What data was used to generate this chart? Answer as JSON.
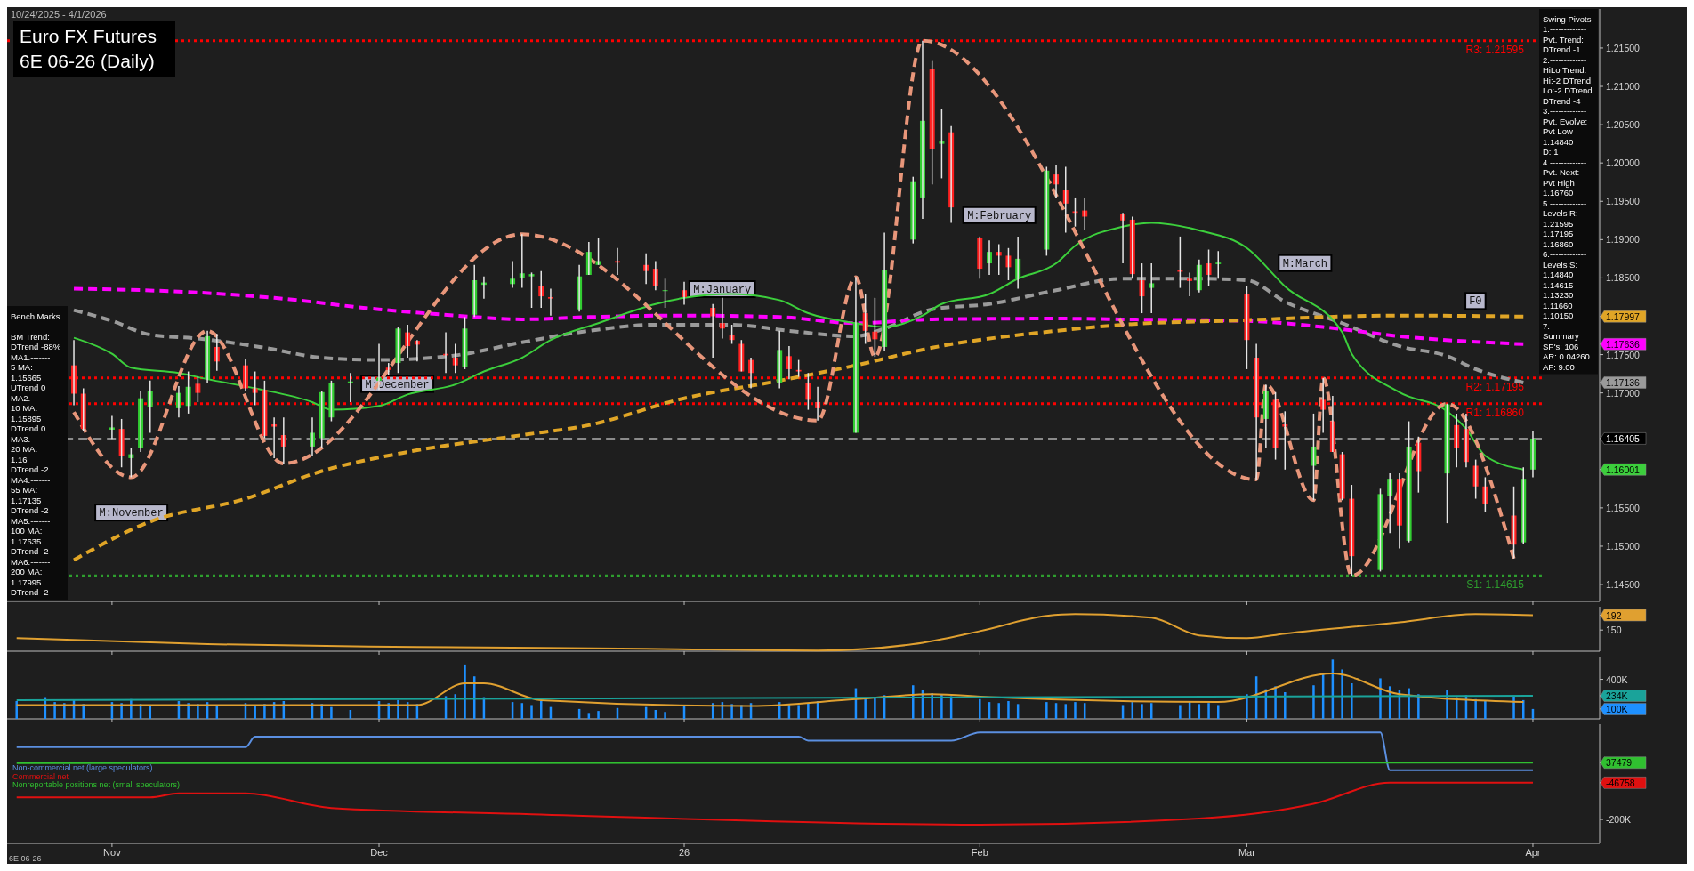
{
  "chart_data": [
    {
      "type": "candlestick",
      "title": "Euro FX Futures",
      "subtitle": "6E 06-26 (Daily)",
      "x": [
        "2025-10-30",
        "2025-10-31",
        "2025-11-03",
        "2025-11-04",
        "2025-11-05",
        "2025-11-06",
        "2025-11-07",
        "2025-11-10",
        "2025-11-11",
        "2025-11-12",
        "2025-11-13",
        "2025-11-14",
        "2025-11-17",
        "2025-11-18",
        "2025-11-19",
        "2025-11-20",
        "2025-11-21",
        "2025-11-24",
        "2025-11-25",
        "2025-11-26",
        "2025-11-28",
        "2025-12-01",
        "2025-12-02",
        "2025-12-03",
        "2025-12-04",
        "2025-12-05",
        "2025-12-08",
        "2025-12-09",
        "2025-12-10",
        "2025-12-11",
        "2025-12-12",
        "2025-12-15",
        "2025-12-16",
        "2025-12-17",
        "2025-12-18",
        "2025-12-19",
        "2025-12-22",
        "2025-12-23",
        "2025-12-24",
        "2025-12-26",
        "2025-12-29",
        "2025-12-30",
        "2025-12-31",
        "2026-01-02",
        "2026-01-05",
        "2026-01-06",
        "2026-01-07",
        "2026-01-08",
        "2026-01-09",
        "2026-01-12",
        "2026-01-13",
        "2026-01-14",
        "2026-01-15",
        "2026-01-16",
        "2026-01-20",
        "2026-01-21",
        "2026-01-22",
        "2026-01-23",
        "2026-01-26",
        "2026-01-27",
        "2026-01-28",
        "2026-01-29",
        "2026-01-30",
        "2026-02-02",
        "2026-02-03",
        "2026-02-04",
        "2026-02-05",
        "2026-02-06",
        "2026-02-09",
        "2026-02-10",
        "2026-02-11",
        "2026-02-12",
        "2026-02-13",
        "2026-02-17",
        "2026-02-18",
        "2026-02-19",
        "2026-02-20",
        "2026-02-23",
        "2026-02-24",
        "2026-02-25",
        "2026-02-26",
        "2026-02-27",
        "2026-03-02",
        "2026-03-03",
        "2026-03-04",
        "2026-03-05",
        "2026-03-06",
        "2026-03-09",
        "2026-03-10",
        "2026-03-11",
        "2026-03-12",
        "2026-03-13",
        "2026-03-16",
        "2026-03-17",
        "2026-03-18",
        "2026-03-19",
        "2026-03-20",
        "2026-03-23",
        "2026-03-24",
        "2026-03-25",
        "2026-03-26",
        "2026-03-27",
        "2026-03-30",
        "2026-03-31",
        "2026-04-01"
      ],
      "xlim": [
        "2025-10-23",
        "2026-04-08"
      ],
      "xticks": [
        {
          "value": "2025-11-03",
          "label": null
        },
        {
          "value": "2025-12-01",
          "label": null
        },
        {
          "value": "2026-01-02",
          "label": null
        },
        {
          "value": "2026-02-02",
          "label": null
        },
        {
          "value": "2026-03-02",
          "label": null
        },
        {
          "value": "2026-04-01",
          "label": null
        }
      ],
      "tick_labels": "y",
      "ylim": [
        1.1428,
        1.2201
      ],
      "yticks": [
        {
          "value": 1.145,
          "label": "1.14500"
        },
        {
          "value": 1.15,
          "label": "1.15000"
        },
        {
          "value": 1.155,
          "label": "1.15500"
        },
        {
          "value": 1.17,
          "label": "1.17000"
        },
        {
          "value": 1.175,
          "label": "1.17500"
        },
        {
          "value": 1.185,
          "label": "1.18500"
        },
        {
          "value": 1.19,
          "label": "1.19000"
        },
        {
          "value": 1.195,
          "label": "1.19500"
        },
        {
          "value": 1.2,
          "label": "1.20000"
        },
        {
          "value": 1.205,
          "label": "1.20500"
        },
        {
          "value": 1.21,
          "label": "1.21000"
        },
        {
          "value": 1.215,
          "label": "1.21500"
        },
        {
          "value": 1.17997,
          "label": "1.17997"
        },
        {
          "value": 1.17636,
          "label": "1.17636"
        },
        {
          "value": 1.17136,
          "label": "1.17136"
        },
        {
          "value": 1.16405,
          "label": "1.16405"
        },
        {
          "value": 1.16001,
          "label": "1.16001"
        }
      ],
      "ohlc": [
        [
          1.1736,
          1.1769,
          1.1684,
          1.1699
        ],
        [
          1.1699,
          1.1706,
          1.165,
          1.1653
        ],
        [
          1.1652,
          1.167,
          1.164,
          1.1655
        ],
        [
          1.1653,
          1.1666,
          1.1603,
          1.1618
        ],
        [
          1.1615,
          1.1628,
          1.159,
          1.162
        ],
        [
          1.1628,
          1.1703,
          1.1623,
          1.1693
        ],
        [
          1.1682,
          1.1716,
          1.1648,
          1.1703
        ],
        [
          1.168,
          1.1709,
          1.1668,
          1.17
        ],
        [
          1.1683,
          1.1728,
          1.1673,
          1.1708
        ],
        [
          1.1712,
          1.1721,
          1.1688,
          1.17
        ],
        [
          1.1718,
          1.1781,
          1.1713,
          1.1774
        ],
        [
          1.176,
          1.1777,
          1.1729,
          1.1741
        ],
        [
          1.1736,
          1.1744,
          1.1703,
          1.1706
        ],
        [
          1.1706,
          1.1728,
          1.1684,
          1.17
        ],
        [
          1.1704,
          1.1716,
          1.1641,
          1.1644
        ],
        [
          1.1659,
          1.1668,
          1.1615,
          1.1656
        ],
        [
          1.1645,
          1.1668,
          1.1608,
          1.163
        ],
        [
          1.163,
          1.1668,
          1.1618,
          1.1648
        ],
        [
          1.1641,
          1.1703,
          1.1628,
          1.1701
        ],
        [
          1.1668,
          1.1716,
          1.1663,
          1.1713
        ],
        [
          1.1713,
          1.1726,
          1.1688,
          1.1715
        ],
        [
          1.1716,
          1.1764,
          1.1704,
          1.172
        ],
        [
          1.1733,
          1.1739,
          1.1723,
          1.173
        ],
        [
          1.1739,
          1.1786,
          1.1726,
          1.1784
        ],
        [
          1.1779,
          1.1789,
          1.1746,
          1.1761
        ],
        [
          1.1768,
          1.1769,
          1.1741,
          1.1763
        ],
        [
          1.1751,
          1.1779,
          1.1726,
          1.1749
        ],
        [
          1.1746,
          1.1764,
          1.1726,
          1.1736
        ],
        [
          1.1734,
          1.1799,
          1.1731,
          1.1784
        ],
        [
          1.1802,
          1.1867,
          1.1799,
          1.1847
        ],
        [
          1.1841,
          1.1852,
          1.1823,
          1.1844
        ],
        [
          1.1842,
          1.1872,
          1.1837,
          1.1849
        ],
        [
          1.185,
          1.1907,
          1.1837,
          1.1856
        ],
        [
          1.1852,
          1.1857,
          1.1811,
          1.1855
        ],
        [
          1.1839,
          1.1859,
          1.1811,
          1.1826
        ],
        [
          1.1825,
          1.1836,
          1.1801,
          1.1823
        ],
        [
          1.1809,
          1.1867,
          1.1806,
          1.1852
        ],
        [
          1.1854,
          1.1897,
          1.1854,
          1.1884
        ],
        [
          1.1867,
          1.1902,
          1.1867,
          1.1872
        ],
        [
          1.1872,
          1.1889,
          1.1854,
          1.187
        ],
        [
          1.1867,
          1.1882,
          1.1842,
          1.1859
        ],
        [
          1.1862,
          1.1872,
          1.1834,
          1.1839
        ],
        [
          1.1834,
          1.1849,
          1.1811,
          1.1834
        ],
        [
          1.1834,
          1.1845,
          1.1815,
          1.1825
        ],
        [
          1.1811,
          1.1816,
          1.1746,
          1.18
        ],
        [
          1.1791,
          1.1824,
          1.1771,
          1.1784
        ],
        [
          1.1776,
          1.1789,
          1.1764,
          1.1769
        ],
        [
          1.1764,
          1.1769,
          1.1728,
          1.1728
        ],
        [
          1.1743,
          1.1746,
          1.1706,
          1.1726
        ],
        [
          1.1713,
          1.1781,
          1.1706,
          1.1756
        ],
        [
          1.1748,
          1.1761,
          1.1718,
          1.1731
        ],
        [
          1.173,
          1.1743,
          1.1721,
          1.1728
        ],
        [
          1.1713,
          1.1726,
          1.1678,
          1.1691
        ],
        [
          1.1688,
          1.1708,
          1.1664,
          1.168
        ],
        [
          1.1648,
          1.1851,
          1.1648,
          1.1791
        ],
        [
          1.1804,
          1.1829,
          1.1764,
          1.1781
        ],
        [
          1.178,
          1.1824,
          1.1747,
          1.177
        ],
        [
          1.176,
          1.1909,
          1.1755,
          1.186
        ],
        [
          1.19,
          1.1982,
          1.1895,
          1.1975
        ],
        [
          1.1955,
          1.21595,
          1.1927,
          1.2055
        ],
        [
          1.2123,
          1.2133,
          1.1972,
          1.2018
        ],
        [
          1.2025,
          1.207,
          1.198,
          1.2028
        ],
        [
          1.204,
          1.2048,
          1.1922,
          1.1942
        ],
        [
          1.1902,
          1.1904,
          1.1849,
          1.1862
        ],
        [
          1.1869,
          1.1899,
          1.1854,
          1.1884
        ],
        [
          1.1884,
          1.1894,
          1.1854,
          1.1879
        ],
        [
          1.1879,
          1.1889,
          1.1847,
          1.1864
        ],
        [
          1.185,
          1.1904,
          1.1836,
          1.1875
        ],
        [
          1.1887,
          1.1995,
          1.1879,
          1.199
        ],
        [
          1.1985,
          1.1997,
          1.1955,
          1.1972
        ],
        [
          1.1965,
          1.1995,
          1.1909,
          1.1947
        ],
        [
          1.1937,
          1.1955,
          1.1917,
          1.1935
        ],
        [
          1.1938,
          1.1955,
          1.1912,
          1.193
        ],
        [
          1.1934,
          1.1935,
          1.1869,
          1.1925
        ],
        [
          1.1926,
          1.193,
          1.1849,
          1.1855
        ],
        [
          1.1847,
          1.1869,
          1.1804,
          1.1826
        ],
        [
          1.1837,
          1.1869,
          1.1804,
          1.1843
        ],
        [
          1.186,
          1.1904,
          1.1837,
          1.1858
        ],
        [
          1.1849,
          1.1857,
          1.1826,
          1.1846
        ],
        [
          1.1834,
          1.1874,
          1.1831,
          1.1867
        ],
        [
          1.1869,
          1.1887,
          1.1839,
          1.1854
        ],
        [
          1.1868,
          1.1885,
          1.1849,
          1.187
        ],
        [
          1.1829,
          1.1839,
          1.1731,
          1.1769
        ],
        [
          1.1746,
          1.1764,
          1.1587,
          1.1668
        ],
        [
          1.1666,
          1.1711,
          1.1628,
          1.1703
        ],
        [
          1.1691,
          1.1701,
          1.1613,
          1.1628
        ],
        [
          1.1659,
          1.1676,
          1.16,
          1.1656
        ],
        [
          1.1605,
          1.1673,
          1.156,
          1.163
        ],
        [
          1.1691,
          1.17195,
          1.1648,
          1.1678
        ],
        [
          1.1663,
          1.1696,
          1.1623,
          1.1623
        ],
        [
          1.162,
          1.1623,
          1.156,
          1.1562
        ],
        [
          1.1562,
          1.158,
          1.14615,
          1.1487
        ],
        [
          1.1469,
          1.1575,
          1.1467,
          1.1568
        ],
        [
          1.1565,
          1.1595,
          1.1517,
          1.1588
        ],
        [
          1.1588,
          1.1595,
          1.1497,
          1.1527
        ],
        [
          1.1507,
          1.1663,
          1.1505,
          1.163
        ],
        [
          1.1635,
          1.1643,
          1.157,
          1.1598
        ],
        [
          1.1595,
          1.1686,
          1.153,
          1.1685
        ],
        [
          1.1658,
          1.1673,
          1.1603,
          1.1628
        ],
        [
          1.1653,
          1.1673,
          1.1603,
          1.161
        ],
        [
          1.1605,
          1.1613,
          1.1562,
          1.1578
        ],
        [
          1.1578,
          1.159,
          1.1545,
          1.1555
        ],
        [
          1.154,
          1.1578,
          1.1484,
          1.1502
        ],
        [
          1.1505,
          1.1603,
          1.1503,
          1.1588
        ],
        [
          1.16,
          1.165,
          1.159,
          1.16405
        ]
      ],
      "series": [
        {
          "type": "line",
          "color": "#9a9a9a",
          "line_style": "dashed",
          "x": [
            "2025-10-30",
            "2025-11-03",
            "2025-11-07",
            "2025-11-12",
            "2025-11-19",
            "2025-11-25",
            "2025-12-01",
            "2025-12-04",
            "2025-12-09",
            "2025-12-16",
            "2025-12-23",
            "2025-12-30",
            "2026-01-07",
            "2026-01-13",
            "2026-01-20",
            "2026-01-23",
            "2026-01-28",
            "2026-02-03",
            "2026-02-10",
            "2026-02-17",
            "2026-02-25",
            "2026-03-02",
            "2026-03-06",
            "2026-03-12",
            "2026-03-18",
            "2026-03-23",
            "2026-03-26",
            "2026-03-31"
          ],
          "values": [
            1.1808,
            1.1794,
            1.1776,
            1.1771,
            1.1759,
            1.1746,
            1.1743,
            1.1744,
            1.1749,
            1.1766,
            1.1781,
            1.1789,
            1.1789,
            1.1781,
            1.1774,
            1.1784,
            1.1809,
            1.1816,
            1.1834,
            1.1849,
            1.1849,
            1.1847,
            1.1819,
            1.1791,
            1.1761,
            1.1748,
            1.1731,
            1.17136
          ]
        },
        {
          "type": "line",
          "color": "#ff00ff",
          "line_style": "dashed",
          "x": [
            "2025-10-30",
            "2025-11-12",
            "2025-11-20",
            "2025-12-01",
            "2025-12-09",
            "2025-12-16",
            "2025-12-23",
            "2026-01-02",
            "2026-01-12",
            "2026-01-20",
            "2026-01-28",
            "2026-02-10",
            "2026-02-17",
            "2026-03-02",
            "2026-03-10",
            "2026-03-18",
            "2026-03-31"
          ],
          "values": [
            1.1836,
            1.1831,
            1.1824,
            1.1809,
            1.1801,
            1.1796,
            1.1799,
            1.1801,
            1.1799,
            1.1791,
            1.1796,
            1.1797,
            1.1796,
            1.1794,
            1.1786,
            1.1774,
            1.17636
          ]
        },
        {
          "type": "line",
          "color": "#e0a526",
          "line_style": "dashed",
          "x": [
            "2025-10-30",
            "2025-11-07",
            "2025-11-17",
            "2025-11-25",
            "2025-12-04",
            "2025-12-16",
            "2025-12-23",
            "2026-01-02",
            "2026-01-12",
            "2026-01-20",
            "2026-01-28",
            "2026-02-10",
            "2026-02-17",
            "2026-03-02",
            "2026-03-10",
            "2026-03-18",
            "2026-03-31"
          ],
          "values": [
            1.1482,
            1.1532,
            1.1562,
            1.1598,
            1.1623,
            1.1645,
            1.1658,
            1.1693,
            1.1716,
            1.1736,
            1.1759,
            1.1781,
            1.1789,
            1.1795,
            1.1799,
            1.1801,
            1.17997
          ]
        },
        {
          "type": "line",
          "color": "#3ccf3c",
          "x": [
            "2025-10-30",
            "2025-11-03",
            "2025-11-05",
            "2025-11-10",
            "2025-11-13",
            "2025-11-18",
            "2025-11-24",
            "2025-11-26",
            "2025-12-01",
            "2025-12-04",
            "2025-12-09",
            "2025-12-12",
            "2025-12-16",
            "2025-12-19",
            "2025-12-24",
            "2025-12-30",
            "2026-01-02",
            "2026-01-07",
            "2026-01-12",
            "2026-01-15",
            "2026-01-20",
            "2026-01-23",
            "2026-01-27",
            "2026-01-29",
            "2026-02-03",
            "2026-02-06",
            "2026-02-10",
            "2026-02-12",
            "2026-02-17",
            "2026-02-20",
            "2026-02-25",
            "2026-03-02",
            "2026-03-06",
            "2026-03-12",
            "2026-03-13",
            "2026-03-18",
            "2026-03-23",
            "2026-03-25",
            "2026-03-27",
            "2026-03-31"
          ],
          "values": [
            1.1772,
            1.1751,
            1.1733,
            1.1726,
            1.1718,
            1.1706,
            1.1688,
            1.1678,
            1.1683,
            1.1698,
            1.1711,
            1.1728,
            1.1746,
            1.1769,
            1.1791,
            1.1816,
            1.1824,
            1.1829,
            1.1821,
            1.1804,
            1.1791,
            1.1786,
            1.1801,
            1.1816,
            1.1829,
            1.1849,
            1.1869,
            1.1892,
            1.1917,
            1.1922,
            1.1912,
            1.1889,
            1.1839,
            1.1779,
            1.1751,
            1.1701,
            1.1676,
            1.1653,
            1.1618,
            1.16001
          ]
        },
        {
          "type": "line",
          "color": "#e8967a",
          "line_style": "dashed",
          "x": [
            "2025-10-30",
            "2025-11-05",
            "2025-11-13",
            "2025-11-21",
            "2025-12-16",
            "2026-01-16",
            "2026-01-20",
            "2026-01-22",
            "2026-01-27",
            "2026-03-03",
            "2026-03-04",
            "2026-03-09",
            "2026-03-10",
            "2026-03-13",
            "2026-03-23",
            "2026-03-30"
          ],
          "values": [
            1.1675,
            1.159,
            1.1781,
            1.1608,
            1.1907,
            1.1664,
            1.1851,
            1.1747,
            1.21595,
            1.1587,
            1.1711,
            1.156,
            1.17195,
            1.14615,
            1.1686,
            1.1484
          ]
        }
      ],
      "ref_lines": [
        {
          "axis": "y",
          "value": 1.21595,
          "label": "R3: 1.21595",
          "color": "#ff0000",
          "line_style": "dotted"
        },
        {
          "axis": "y",
          "value": 1.17195,
          "label": "R2: 1.17195",
          "color": "#ff0000",
          "line_style": "dotted"
        },
        {
          "axis": "y",
          "value": 1.1686,
          "label": "R1: 1.16860",
          "color": "#ff0000",
          "line_style": "dotted"
        },
        {
          "axis": "y",
          "value": 1.14615,
          "label": "S1: 1.14615",
          "color": "#2e9e2e",
          "line_style": "dotted"
        },
        {
          "axis": "y",
          "value": 1.16405,
          "color": "#b0b0b0",
          "line_style": "dashed"
        }
      ],
      "annotations": [
        "10/24/2025 - 4/1/2026",
        "Swing Pivots\n1.-------------\nPvt. Trend:\nDTrend -1\n2.-------------\nHiLo Trend:\nHi:-2 DTrend\nLo:-2 DTrend\nDTrend -4\n3.-------------\nPvt. Evolve:\nPvt Low\n1.14840\nD: 1\n4.-------------\nPvt. Next:\nPvt High\n1.16760\n5.-------------\nLevels R:\n1.21595\n1.17195\n1.16860\n6.-------------\nLevels S:\n1.14840\n1.14615\n1.13230\n1.11660\n1.10150\n7.-------------\nSummary\nSP's: 106\nAR: 0.04260\nAF: 9.00",
        "Bench Marks\n------------\nBM Trend:\nDTrend -88%\nMA1.-------\n5 MA:\n1.15665\nUTrend 0\nMA2.-------\n10 MA:\n1.15895\nDTrend 0\nMA3.-------\n20 MA:\n1.16\nDTrend -2\nMA4.-------\n55 MA:\n1.17135\nDTrend -2\nMA5.-------\n100 MA:\n1.17635\nDTrend -2\nMA6.-------\n200 MA:\n1.17995\nDTrend -2",
        "M:November",
        "M:December",
        "M:January",
        "M:February",
        "M:March",
        "F0"
      ]
    },
    {
      "type": "line",
      "xlim": [
        "2025-10-23",
        "2026-04-08"
      ],
      "xticks": [
        {
          "value": "2025-11-03",
          "label": null
        },
        {
          "value": "2025-12-01",
          "label": null
        },
        {
          "value": "2026-01-02",
          "label": null
        },
        {
          "value": "2026-02-02",
          "label": null
        },
        {
          "value": "2026-03-02",
          "label": null
        },
        {
          "value": "2026-04-01",
          "label": null
        }
      ],
      "tick_labels": "y",
      "ylim": [
        90,
        216
      ],
      "yticks": [
        150,
        192
      ],
      "series": [
        {
          "color": "#e0a030",
          "x": [
            "2025-10-24",
            "2025-11-13",
            "2025-12-05",
            "2025-12-29",
            "2026-01-16",
            "2026-01-26",
            "2026-02-02",
            "2026-02-09",
            "2026-02-12",
            "2026-02-20",
            "2026-02-25",
            "2026-03-02",
            "2026-03-06",
            "2026-03-18",
            "2026-03-26",
            "2026-04-01"
          ],
          "values": [
            127,
            110,
            102,
            97,
            92,
            110,
            147,
            190,
            195,
            185,
            135,
            127,
            140,
            172,
            195,
            192
          ]
        }
      ]
    },
    {
      "type": "bar",
      "x": [
        "2025-10-24",
        "2025-10-27",
        "2025-10-28",
        "2025-10-29",
        "2025-10-30",
        "2025-10-31",
        "2025-11-03",
        "2025-11-04",
        "2025-11-05",
        "2025-11-06",
        "2025-11-07",
        "2025-11-10",
        "2025-11-11",
        "2025-11-12",
        "2025-11-13",
        "2025-11-14",
        "2025-11-17",
        "2025-11-18",
        "2025-11-19",
        "2025-11-20",
        "2025-11-21",
        "2025-11-24",
        "2025-11-25",
        "2025-11-26",
        "2025-11-28",
        "2025-12-01",
        "2025-12-02",
        "2025-12-03",
        "2025-12-04",
        "2025-12-05",
        "2025-12-08",
        "2025-12-09",
        "2025-12-10",
        "2025-12-11",
        "2025-12-12",
        "2025-12-15",
        "2025-12-16",
        "2025-12-17",
        "2025-12-18",
        "2025-12-19",
        "2025-12-22",
        "2025-12-23",
        "2025-12-24",
        "2025-12-26",
        "2025-12-29",
        "2025-12-30",
        "2025-12-31",
        "2026-01-02",
        "2026-01-05",
        "2026-01-06",
        "2026-01-07",
        "2026-01-08",
        "2026-01-09",
        "2026-01-12",
        "2026-01-13",
        "2026-01-14",
        "2026-01-15",
        "2026-01-16",
        "2026-01-20",
        "2026-01-21",
        "2026-01-22",
        "2026-01-23",
        "2026-01-26",
        "2026-01-27",
        "2026-01-28",
        "2026-01-29",
        "2026-01-30",
        "2026-02-02",
        "2026-02-03",
        "2026-02-04",
        "2026-02-05",
        "2026-02-06",
        "2026-02-09",
        "2026-02-10",
        "2026-02-11",
        "2026-02-12",
        "2026-02-13",
        "2026-02-17",
        "2026-02-18",
        "2026-02-19",
        "2026-02-20",
        "2026-02-23",
        "2026-02-24",
        "2026-02-25",
        "2026-02-26",
        "2026-02-27",
        "2026-03-02",
        "2026-03-03",
        "2026-03-04",
        "2026-03-05",
        "2026-03-06",
        "2026-03-09",
        "2026-03-10",
        "2026-03-11",
        "2026-03-12",
        "2026-03-13",
        "2026-03-16",
        "2026-03-17",
        "2026-03-18",
        "2026-03-19",
        "2026-03-20",
        "2026-03-23",
        "2026-03-24",
        "2026-03-25",
        "2026-03-26",
        "2026-03-27",
        "2026-03-30",
        "2026-03-31",
        "2026-04-01"
      ],
      "xlim": [
        "2025-10-23",
        "2026-04-08"
      ],
      "xticks": [
        {
          "value": "2025-11-03",
          "label": null
        },
        {
          "value": "2025-12-01",
          "label": null
        },
        {
          "value": "2026-01-02",
          "label": null
        },
        {
          "value": "2026-02-02",
          "label": null
        },
        {
          "value": "2026-03-02",
          "label": null
        },
        {
          "value": "2026-04-01",
          "label": null
        }
      ],
      "tick_labels": "y",
      "ylim": [
        0,
        630000
      ],
      "yticks": [
        {
          "value": 400000,
          "label": "400K"
        },
        {
          "value": 234000,
          "label": "234K"
        },
        {
          "value": 100000,
          "label": "100K"
        }
      ],
      "color": "#1e90ff",
      "values": [
        180000,
        220000,
        170000,
        160000,
        190000,
        150000,
        170000,
        160000,
        200000,
        150000,
        140000,
        180000,
        160000,
        150000,
        170000,
        130000,
        160000,
        140000,
        150000,
        170000,
        180000,
        160000,
        150000,
        120000,
        90000,
        180000,
        160000,
        190000,
        170000,
        150000,
        230000,
        250000,
        550000,
        430000,
        220000,
        170000,
        160000,
        140000,
        180000,
        120000,
        100000,
        60000,
        80000,
        110000,
        120000,
        90000,
        70000,
        130000,
        160000,
        170000,
        150000,
        140000,
        160000,
        170000,
        150000,
        140000,
        160000,
        180000,
        310000,
        200000,
        220000,
        240000,
        340000,
        290000,
        260000,
        250000,
        230000,
        200000,
        170000,
        160000,
        180000,
        150000,
        170000,
        160000,
        150000,
        170000,
        160000,
        140000,
        170000,
        150000,
        160000,
        140000,
        170000,
        150000,
        160000,
        140000,
        250000,
        430000,
        300000,
        330000,
        270000,
        340000,
        450000,
        600000,
        500000,
        360000,
        410000,
        330000,
        290000,
        310000,
        250000,
        290000,
        220000,
        240000,
        200000,
        180000,
        230000,
        190000,
        100000
      ],
      "series": [
        {
          "type": "line",
          "color": "#e0a030",
          "x": [
            "2025-10-24",
            "2025-12-05",
            "2025-12-10",
            "2025-12-12",
            "2025-12-18",
            "2026-01-09",
            "2026-01-20",
            "2026-01-28",
            "2026-02-03",
            "2026-02-27",
            "2026-03-11",
            "2026-03-18",
            "2026-03-31"
          ],
          "values": [
            140000,
            140000,
            360000,
            360000,
            190000,
            130000,
            200000,
            250000,
            220000,
            170000,
            460000,
            250000,
            170000
          ]
        },
        {
          "type": "line",
          "color": "#1aa39a",
          "x": [
            "2025-10-24",
            "2026-04-01"
          ],
          "values": [
            190000,
            234000
          ]
        }
      ]
    },
    {
      "type": "line",
      "xlim": [
        "2025-10-23",
        "2026-04-08"
      ],
      "xticks": [
        {
          "value": "2025-11-03",
          "label": "Nov"
        },
        {
          "value": "2025-12-01",
          "label": "Dec"
        },
        {
          "value": "2026-01-02",
          "label": "26"
        },
        {
          "value": "2026-02-02",
          "label": "Feb"
        },
        {
          "value": "2026-03-02",
          "label": "Mar"
        },
        {
          "value": "2026-04-01",
          "label": "Apr"
        }
      ],
      "ylim": [
        -300000,
        198000
      ],
      "yticks": [
        {
          "value": -200000,
          "label": "-200K"
        },
        {
          "value": 37479,
          "label": "37479"
        },
        {
          "value": -46758,
          "label": "-46758"
        }
      ],
      "legend": "left",
      "series": [
        {
          "name": "Non-commercial net (large speculators)",
          "color": "#5b8fe0",
          "x": [
            "2025-10-24",
            "2025-11-17",
            "2025-11-18",
            "2026-01-14",
            "2026-01-15",
            "2026-01-30",
            "2026-02-02",
            "2026-03-16",
            "2026-03-17",
            "2026-04-01"
          ],
          "values": [
            102000,
            102000,
            146000,
            146000,
            129000,
            129000,
            164000,
            164000,
            6000,
            6000
          ]
        },
        {
          "name": "Commercial net",
          "color": "#e01010",
          "x": [
            "2025-10-24",
            "2025-11-07",
            "2025-11-10",
            "2025-11-17",
            "2025-11-26",
            "2025-12-17",
            "2026-02-02",
            "2026-02-25",
            "2026-03-09",
            "2026-03-17",
            "2026-04-01"
          ],
          "values": [
            -108000,
            -108000,
            -91000,
            -91000,
            -152000,
            -178000,
            -222000,
            -196000,
            -135000,
            -46758,
            -46758
          ]
        },
        {
          "name": "Nonreportable positions net (small speculators)",
          "color": "#30c030",
          "x": [
            "2025-10-24",
            "2026-04-01"
          ],
          "values": [
            35000,
            37479
          ]
        }
      ],
      "annotations": [
        "6E 06-26"
      ]
    }
  ]
}
